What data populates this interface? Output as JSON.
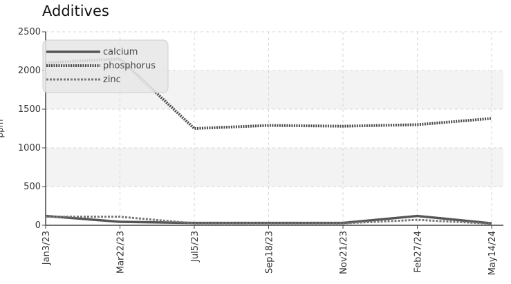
{
  "chart_data": {
    "type": "line",
    "title": "Additives",
    "ylabel": "ppm",
    "xlabel": "",
    "ylim": [
      0,
      2500
    ],
    "yticks": [
      0,
      500,
      1000,
      1500,
      2000,
      2500
    ],
    "categories": [
      "Jan3/23",
      "Mar22/23",
      "Jul5/23",
      "Sep18/23",
      "Nov21/23",
      "Feb27/24",
      "May14/24"
    ],
    "grid": true,
    "legend_position": "top-left",
    "series": [
      {
        "name": "calcium",
        "color": "#555555",
        "style": "solid",
        "values": [
          120,
          45,
          30,
          30,
          30,
          120,
          25
        ]
      },
      {
        "name": "phosphorus",
        "color": "#4a4a4a",
        "style": "dotted",
        "values": [
          2100,
          2150,
          1250,
          1290,
          1280,
          1300,
          1380
        ]
      },
      {
        "name": "zinc",
        "color": "#777777",
        "style": "dashed",
        "values": [
          110,
          110,
          25,
          25,
          25,
          70,
          20
        ]
      }
    ]
  }
}
